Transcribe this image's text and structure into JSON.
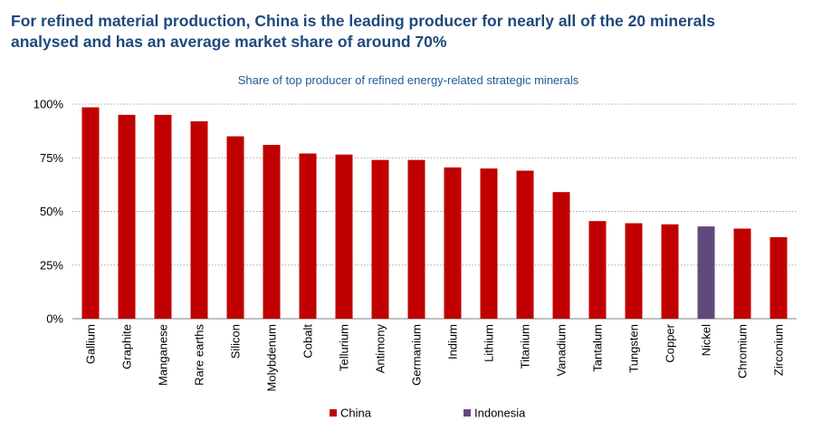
{
  "header": {
    "title_line1": "For refined material production, China is the leading producer for nearly all of the 20 minerals",
    "title_line2": "analysed and has an average market share of around 70%"
  },
  "colors": {
    "china": "#c00000",
    "indonesia": "#604a7b",
    "title": "#1f497d",
    "subtitle": "#1f5a93",
    "grid": "#a6a6a6"
  },
  "chart_data": {
    "type": "bar",
    "title": "Share of top producer of refined energy-related strategic minerals",
    "xlabel": "",
    "ylabel": "",
    "ylim": [
      0,
      100
    ],
    "y_ticks": [
      "0%",
      "25%",
      "50%",
      "75%",
      "100%"
    ],
    "y_tick_values": [
      0,
      25,
      50,
      75,
      100
    ],
    "grid": "horizontal dotted",
    "legend_position": "bottom",
    "categories": [
      "Gallium",
      "Graphite",
      "Manganese",
      "Rare earths",
      "Silicon",
      "Molybdenum",
      "Cobalt",
      "Tellurium",
      "Antimony",
      "Germanium",
      "Indium",
      "Lithium",
      "Titanium",
      "Vanadium",
      "Tantalum",
      "Tungsten",
      "Copper",
      "Nickel",
      "Chromium",
      "Zirconium"
    ],
    "values": [
      98.5,
      95,
      95,
      92,
      85,
      81,
      77,
      76.5,
      74,
      74,
      70.5,
      70,
      69,
      59,
      45.5,
      44.5,
      44,
      43,
      42,
      38
    ],
    "producer": [
      "China",
      "China",
      "China",
      "China",
      "China",
      "China",
      "China",
      "China",
      "China",
      "China",
      "China",
      "China",
      "China",
      "China",
      "China",
      "China",
      "China",
      "Indonesia",
      "China",
      "China"
    ],
    "legend": [
      {
        "name": "China",
        "color": "#c00000"
      },
      {
        "name": "Indonesia",
        "color": "#604a7b"
      }
    ]
  }
}
